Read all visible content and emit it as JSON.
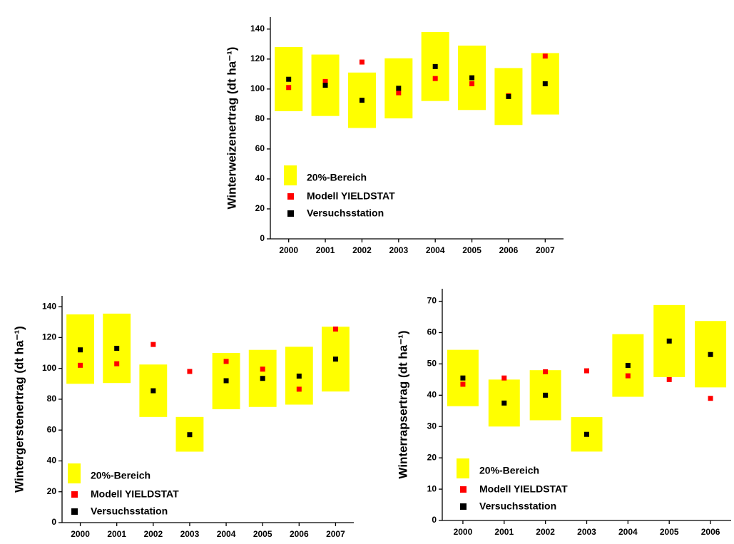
{
  "chart_data": [
    {
      "type": "range-scatter",
      "y_label": "Winterweizenertrag (dt ha⁻¹)",
      "categories": [
        "2000",
        "2001",
        "2002",
        "2003",
        "2004",
        "2005",
        "2006",
        "2007"
      ],
      "series": [
        {
          "name": "20%-Bereich",
          "color": "#ffff00",
          "low": [
            85.2,
            82,
            74,
            80.4,
            92,
            86,
            76,
            83
          ],
          "high": [
            128,
            123,
            111,
            120.5,
            138,
            129,
            114,
            124
          ]
        },
        {
          "name": "Modell YIELDSTAT",
          "color": "#ff0000",
          "values": [
            101,
            105,
            118,
            97.5,
            107,
            103.5,
            95.5,
            122
          ]
        },
        {
          "name": "Versuchsstation",
          "color": "#000000",
          "values": [
            106.5,
            102.5,
            92.5,
            100.5,
            115,
            107.5,
            95,
            103.5
          ]
        }
      ],
      "ylim": [
        0,
        148
      ],
      "yticks": [
        0,
        20,
        40,
        60,
        80,
        100,
        120,
        140
      ]
    },
    {
      "type": "range-scatter",
      "y_label": "Wintergerstenertrag (dt ha⁻¹)",
      "categories": [
        "2000",
        "2001",
        "2002",
        "2003",
        "2004",
        "2005",
        "2006",
        "2007"
      ],
      "series": [
        {
          "name": "20%-Bereich",
          "color": "#ffff00",
          "low": [
            90,
            90.5,
            68.5,
            46,
            73.5,
            75,
            76.5,
            85
          ],
          "high": [
            135,
            135.5,
            102.5,
            68.5,
            110,
            112,
            114,
            127
          ]
        },
        {
          "name": "Modell YIELDSTAT",
          "color": "#ff0000",
          "values": [
            102,
            103,
            115.5,
            98,
            104.5,
            99.5,
            86.5,
            125.5
          ]
        },
        {
          "name": "Versuchsstation",
          "color": "#000000",
          "values": [
            112,
            113,
            85.5,
            57,
            92,
            93.5,
            95,
            106
          ]
        }
      ],
      "ylim": [
        0,
        147
      ],
      "yticks": [
        0,
        20,
        40,
        60,
        80,
        100,
        120,
        140
      ]
    },
    {
      "type": "range-scatter",
      "y_label": "Winterrapsertrag (dt ha⁻¹)",
      "categories": [
        "2000",
        "2001",
        "2002",
        "2003",
        "2004",
        "2005",
        "2006"
      ],
      "series": [
        {
          "name": "20%-Bereich",
          "color": "#ffff00",
          "low": [
            36.5,
            30,
            32,
            22,
            39.5,
            45.8,
            42.5
          ],
          "high": [
            54.5,
            45,
            48,
            33,
            59.5,
            68.8,
            63.7
          ]
        },
        {
          "name": "Modell YIELDSTAT",
          "color": "#ff0000",
          "values": [
            43.5,
            45.5,
            47.5,
            47.8,
            46.2,
            45,
            39
          ]
        },
        {
          "name": "Versuchsstation",
          "color": "#000000",
          "values": [
            45.5,
            37.5,
            40,
            27.5,
            49.5,
            57.3,
            53
          ]
        }
      ],
      "ylim": [
        0,
        74
      ],
      "yticks": [
        0,
        10,
        20,
        30,
        40,
        50,
        60,
        70
      ]
    }
  ]
}
